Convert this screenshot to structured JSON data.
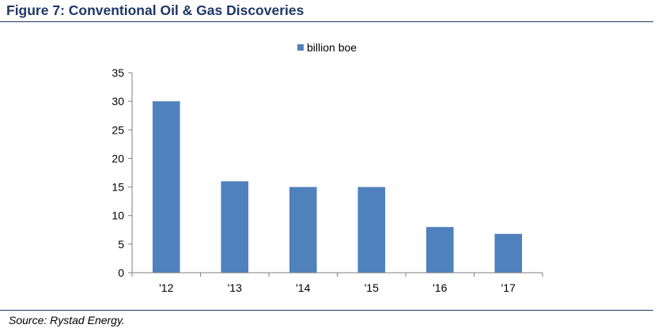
{
  "figure": {
    "title": "Figure 7:  Conventional Oil & Gas Discoveries",
    "source": "Source: Rystad Energy."
  },
  "colors": {
    "bar": "#4f81bd",
    "title": "#1f3864",
    "axis": "#7f7f7f",
    "text": "#000000"
  },
  "chart_data": {
    "type": "bar",
    "categories": [
      "'12",
      "'13",
      "'14",
      "'15",
      "'16",
      "'17"
    ],
    "series": [
      {
        "name": "billion boe",
        "values": [
          30,
          16,
          15,
          15,
          8,
          6.8
        ]
      }
    ],
    "title": "",
    "xlabel": "",
    "ylabel": "",
    "ylim": [
      0,
      35
    ],
    "yticks": [
      0,
      5,
      10,
      15,
      20,
      25,
      30,
      35
    ],
    "grid": false,
    "legend": "top-center"
  }
}
